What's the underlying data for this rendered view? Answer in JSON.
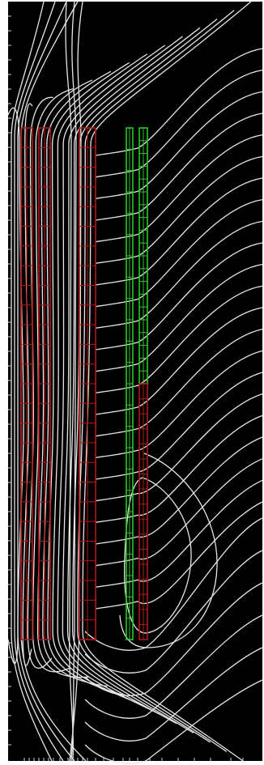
{
  "figure": {
    "type": "field-line-plot",
    "background_color": "#000000",
    "field_line_color": "#e6e6e6",
    "axis_tick_color": "#cfcfcf",
    "border_color": "#ffffff"
  },
  "coils": [
    {
      "id": "outer-left",
      "color": "#b01818",
      "column": 1,
      "segments": 26,
      "span_fraction": [
        0.0,
        1.0
      ]
    },
    {
      "id": "inner-left",
      "color": "#b01818",
      "column": 2,
      "segments": 26,
      "span_fraction": [
        0.0,
        1.0
      ]
    },
    {
      "id": "center",
      "color": "#b01818",
      "column": 3,
      "segments": 26,
      "span_fraction": [
        0.0,
        1.0
      ]
    },
    {
      "id": "green-left",
      "color": "#28c828",
      "column": 4,
      "segments": 24,
      "span_fraction": [
        0.0,
        1.0
      ]
    },
    {
      "id": "green-right",
      "color": "#28c828",
      "column": 5,
      "segments": 20,
      "span_fraction": [
        0.0,
        0.5
      ]
    },
    {
      "id": "lower-right",
      "color": "#b01818",
      "column": 5,
      "segments": 17,
      "span_fraction": [
        0.5,
        1.0
      ]
    }
  ],
  "field_lines": {
    "count": 38,
    "description_style": "contour"
  }
}
